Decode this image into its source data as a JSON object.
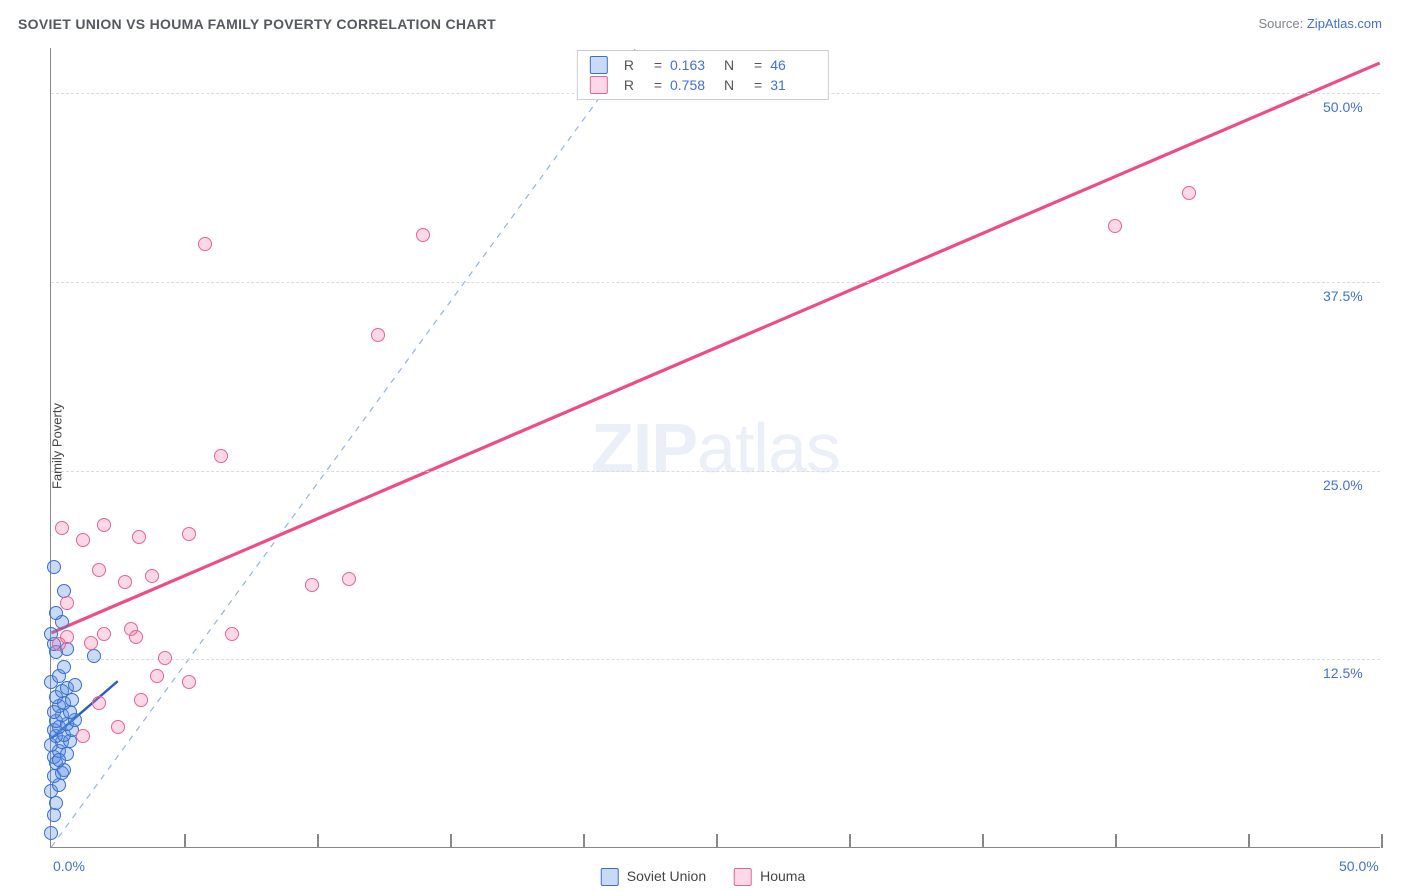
{
  "title": "SOVIET UNION VS HOUMA FAMILY POVERTY CORRELATION CHART",
  "source_label": "Source: ",
  "source_value": "ZipAtlas.com",
  "watermark": {
    "bold": "ZIP",
    "rest": "atlas"
  },
  "chart": {
    "type": "scatter",
    "xlim": [
      0,
      50
    ],
    "ylim": [
      0,
      53
    ],
    "xlabel_start": "0.0%",
    "xlabel_end": "50.0%",
    "yaxis_title": "Family Poverty",
    "y_gridlines": [
      12.5,
      25.0,
      37.5,
      50.0
    ],
    "y_tick_labels": [
      "12.5%",
      "25.0%",
      "37.5%",
      "50.0%"
    ],
    "x_ticks": [
      0,
      5,
      10,
      15,
      20,
      25,
      30,
      35,
      40,
      45,
      50
    ],
    "background_color": "#ffffff",
    "grid_color": "#d9dde0",
    "axis_color": "#888888",
    "label_color": "#4070d8",
    "title_color": "#55595e",
    "title_fontsize": 14,
    "label_fontsize": 14,
    "point_radius": 7,
    "series": [
      {
        "name": "Soviet Union",
        "fill": "rgba(96,150,230,0.35)",
        "stroke": "#3a6fd0",
        "R": "0.163",
        "N": "46",
        "trend": {
          "x1": 0,
          "y1": 7.2,
          "x2": 2.5,
          "y2": 11.0,
          "color": "#2a5fc0",
          "width": 2.4,
          "dash": null
        },
        "points": [
          [
            0.0,
            1.0
          ],
          [
            0.1,
            2.2
          ],
          [
            0.2,
            3.0
          ],
          [
            0.0,
            3.8
          ],
          [
            0.3,
            4.2
          ],
          [
            0.1,
            4.8
          ],
          [
            0.4,
            5.0
          ],
          [
            0.2,
            5.6
          ],
          [
            0.5,
            5.2
          ],
          [
            0.1,
            6.0
          ],
          [
            0.3,
            6.4
          ],
          [
            0.0,
            6.8
          ],
          [
            0.6,
            6.2
          ],
          [
            0.4,
            7.0
          ],
          [
            0.2,
            7.4
          ],
          [
            0.7,
            7.1
          ],
          [
            0.1,
            7.8
          ],
          [
            0.5,
            7.5
          ],
          [
            0.3,
            8.0
          ],
          [
            0.8,
            7.8
          ],
          [
            0.2,
            8.4
          ],
          [
            0.6,
            8.2
          ],
          [
            0.4,
            8.8
          ],
          [
            0.9,
            8.5
          ],
          [
            0.1,
            9.0
          ],
          [
            0.7,
            9.0
          ],
          [
            0.3,
            9.4
          ],
          [
            0.5,
            9.6
          ],
          [
            0.2,
            10.0
          ],
          [
            0.8,
            9.8
          ],
          [
            0.4,
            10.4
          ],
          [
            0.6,
            10.6
          ],
          [
            0.0,
            11.0
          ],
          [
            0.9,
            10.8
          ],
          [
            0.3,
            11.4
          ],
          [
            0.5,
            12.0
          ],
          [
            1.6,
            12.7
          ],
          [
            0.2,
            13.0
          ],
          [
            0.1,
            13.5
          ],
          [
            0.6,
            13.2
          ],
          [
            0.0,
            14.2
          ],
          [
            0.4,
            15.0
          ],
          [
            0.2,
            15.6
          ],
          [
            0.5,
            17.0
          ],
          [
            0.1,
            18.6
          ],
          [
            0.3,
            5.8
          ]
        ]
      },
      {
        "name": "Houma",
        "fill": "rgba(244,120,160,0.28)",
        "stroke": "#e6629a",
        "R": "0.758",
        "N": "31",
        "trend": {
          "x1": 0,
          "y1": 14.2,
          "x2": 50,
          "y2": 52.0,
          "color": "#ef4b86",
          "width": 3.2,
          "dash": null
        },
        "points": [
          [
            0.3,
            13.5
          ],
          [
            0.6,
            14.0
          ],
          [
            1.5,
            13.6
          ],
          [
            2.0,
            14.2
          ],
          [
            3.0,
            14.5
          ],
          [
            6.8,
            14.2
          ],
          [
            4.3,
            12.6
          ],
          [
            2.5,
            8.0
          ],
          [
            3.4,
            9.8
          ],
          [
            5.2,
            11.0
          ],
          [
            4.0,
            11.4
          ],
          [
            3.2,
            14.0
          ],
          [
            0.6,
            16.2
          ],
          [
            1.8,
            18.4
          ],
          [
            1.2,
            20.4
          ],
          [
            2.0,
            21.4
          ],
          [
            0.4,
            21.2
          ],
          [
            3.3,
            20.6
          ],
          [
            5.2,
            20.8
          ],
          [
            2.8,
            17.6
          ],
          [
            3.8,
            18.0
          ],
          [
            9.8,
            17.4
          ],
          [
            11.2,
            17.8
          ],
          [
            6.4,
            26.0
          ],
          [
            12.3,
            34.0
          ],
          [
            5.8,
            40.0
          ],
          [
            14.0,
            40.6
          ],
          [
            40.0,
            41.2
          ],
          [
            42.8,
            43.4
          ],
          [
            1.2,
            7.4
          ],
          [
            1.8,
            9.6
          ]
        ]
      }
    ],
    "reference_line": {
      "x1": 0,
      "y1": 0,
      "x2": 22,
      "y2": 53,
      "color": "#8fb4e8",
      "width": 1.2,
      "dash": "6,6"
    }
  },
  "legend_bottom": [
    {
      "label": "Soviet Union",
      "fill": "rgba(96,150,230,0.35)",
      "stroke": "#3a6fd0"
    },
    {
      "label": "Houma",
      "fill": "rgba(244,120,160,0.28)",
      "stroke": "#e6629a"
    }
  ]
}
